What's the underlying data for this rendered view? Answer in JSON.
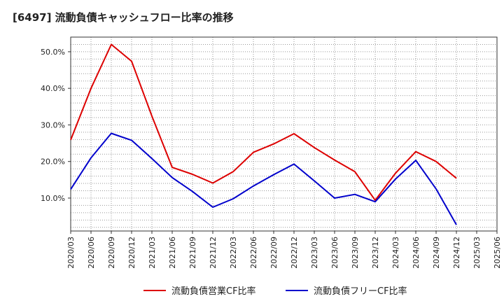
{
  "title": "[6497]  流動負債キャッシュフロー比率の推移",
  "chart_data": {
    "type": "line",
    "x": [
      "2020/03",
      "2020/06",
      "2020/09",
      "2020/12",
      "2021/03",
      "2021/06",
      "2021/09",
      "2021/12",
      "2022/03",
      "2022/06",
      "2022/09",
      "2022/12",
      "2023/03",
      "2023/06",
      "2023/09",
      "2023/12",
      "2024/03",
      "2024/06",
      "2024/09",
      "2024/12",
      "2025/03",
      "2025/06"
    ],
    "series": [
      {
        "name": "流動負債営業CF比率",
        "color": "#dd0000",
        "values": [
          25.9,
          40.0,
          52.0,
          47.4,
          32.4,
          18.4,
          16.5,
          14.1,
          17.2,
          22.5,
          24.8,
          27.6,
          23.8,
          20.4,
          17.2,
          9.4,
          16.8,
          22.7,
          20.0,
          15.4,
          null,
          null
        ]
      },
      {
        "name": "流動負債フリーCF比率",
        "color": "#0000cc",
        "values": [
          12.4,
          21.0,
          27.7,
          25.8,
          20.8,
          15.6,
          11.8,
          7.5,
          9.8,
          13.3,
          16.4,
          19.3,
          14.7,
          10.0,
          11.0,
          9.0,
          15.2,
          20.3,
          12.5,
          2.7,
          null,
          null
        ]
      }
    ],
    "y_ticks": [
      "10.0%",
      "20.0%",
      "30.0%",
      "40.0%",
      "50.0%"
    ],
    "y_tick_values": [
      10,
      20,
      30,
      40,
      50
    ],
    "ylim": [
      1,
      54
    ],
    "grid": true,
    "legend_position": "bottom"
  }
}
